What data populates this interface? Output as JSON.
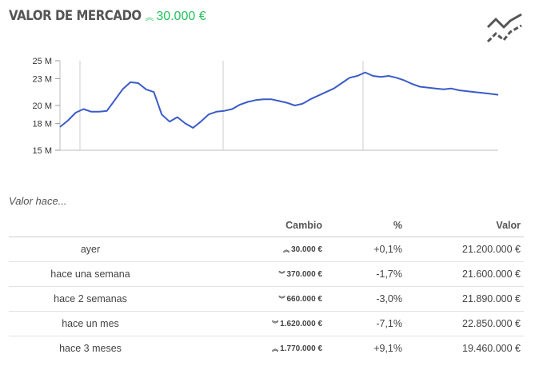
{
  "header": {
    "title": "VALOR DE MERCADO",
    "change_value": "30.000 €",
    "change_direction": "up",
    "trend_icon": "trend-lines-icon"
  },
  "colors": {
    "line": "#3a5bc7",
    "up": "#1fb850",
    "down": "#e0202a",
    "grid": "#cccccc"
  },
  "chart_data": {
    "type": "line",
    "title": "",
    "xlabel": "",
    "ylabel": "",
    "ylim": [
      15,
      25
    ],
    "yticks": [
      15,
      18,
      20,
      23,
      25
    ],
    "ytick_labels": [
      "15 M",
      "18 M",
      "20 M",
      "23 M",
      "25 M"
    ],
    "grid": "vertical",
    "series": [
      {
        "values": [
          17.6,
          18.3,
          19.2,
          19.6,
          19.3,
          19.3,
          19.4,
          20.6,
          21.8,
          22.6,
          22.5,
          21.8,
          21.5,
          19.0,
          18.2,
          18.7,
          18.0,
          17.5,
          18.2,
          19.0,
          19.3,
          19.4,
          19.6,
          20.1,
          20.4,
          20.6,
          20.7,
          20.7,
          20.5,
          20.3,
          20.0,
          20.2,
          20.7,
          21.1,
          21.5,
          21.9,
          22.5,
          23.1,
          23.3,
          23.7,
          23.3,
          23.2,
          23.3,
          23.1,
          22.8,
          22.4,
          22.1,
          22.0,
          21.9,
          21.8,
          21.9,
          21.7,
          21.6,
          21.5,
          21.4,
          21.3,
          21.2
        ]
      }
    ]
  },
  "history": {
    "subtitle": "Valor hace...",
    "headers": {
      "change": "Cambio",
      "pct": "%",
      "value": "Valor"
    },
    "rows": [
      {
        "label": "ayer",
        "change": "30.000 €",
        "direction": "up",
        "pct": "+0,1%",
        "value": "21.200.000 €"
      },
      {
        "label": "hace una semana",
        "change": "370.000 €",
        "direction": "down",
        "pct": "-1,7%",
        "value": "21.600.000 €"
      },
      {
        "label": "hace 2 semanas",
        "change": "660.000 €",
        "direction": "down",
        "pct": "-3,0%",
        "value": "21.890.000 €"
      },
      {
        "label": "hace un mes",
        "change": "1.620.000 €",
        "direction": "down",
        "pct": "-7,1%",
        "value": "22.850.000 €"
      },
      {
        "label": "hace 3 meses",
        "change": "1.770.000 €",
        "direction": "up",
        "pct": "+9,1%",
        "value": "19.460.000 €"
      }
    ]
  }
}
